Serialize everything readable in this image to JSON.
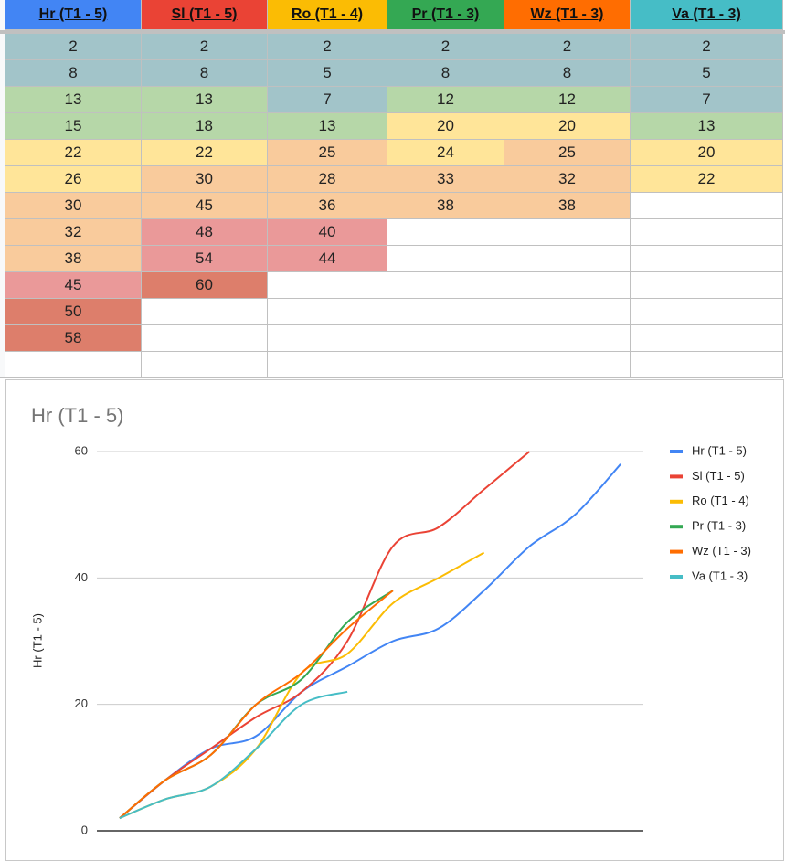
{
  "table": {
    "columns": [
      {
        "header": "Hr (T1 - 5)",
        "header_color": "#4285f4",
        "values": [
          2,
          8,
          13,
          15,
          22,
          26,
          30,
          32,
          38,
          45,
          50,
          58
        ],
        "colors": [
          "#a2c4c9",
          "#a2c4c9",
          "#b6d7a8",
          "#b6d7a8",
          "#ffe599",
          "#ffe599",
          "#f9cb9c",
          "#f9cb9c",
          "#f9cb9c",
          "#ea9999",
          "#dd7e6b",
          "#dd7e6b"
        ]
      },
      {
        "header": "Sl (T1 - 5)",
        "header_color": "#ea4335",
        "values": [
          2,
          8,
          13,
          18,
          22,
          30,
          45,
          48,
          54,
          60
        ],
        "colors": [
          "#a2c4c9",
          "#a2c4c9",
          "#b6d7a8",
          "#b6d7a8",
          "#ffe599",
          "#f9cb9c",
          "#f9cb9c",
          "#ea9999",
          "#ea9999",
          "#dd7e6b"
        ]
      },
      {
        "header": "Ro (T1 - 4)",
        "header_color": "#fbbc04",
        "values": [
          2,
          5,
          7,
          13,
          25,
          28,
          36,
          40,
          44
        ],
        "colors": [
          "#a2c4c9",
          "#a2c4c9",
          "#a2c4c9",
          "#b6d7a8",
          "#f9cb9c",
          "#f9cb9c",
          "#f9cb9c",
          "#ea9999",
          "#ea9999"
        ]
      },
      {
        "header": "Pr (T1 - 3)",
        "header_color": "#34a853",
        "values": [
          2,
          8,
          12,
          20,
          24,
          33,
          38
        ],
        "colors": [
          "#a2c4c9",
          "#a2c4c9",
          "#b6d7a8",
          "#ffe599",
          "#ffe599",
          "#f9cb9c",
          "#f9cb9c"
        ]
      },
      {
        "header": "Wz (T1 - 3)",
        "header_color": "#ff6d01",
        "values": [
          2,
          8,
          12,
          20,
          25,
          32,
          38
        ],
        "colors": [
          "#a2c4c9",
          "#a2c4c9",
          "#b6d7a8",
          "#ffe599",
          "#f9cb9c",
          "#f9cb9c",
          "#f9cb9c"
        ]
      },
      {
        "header": "Va (T1 - 3)",
        "header_color": "#46bdc6",
        "values": [
          2,
          5,
          7,
          13,
          20,
          22
        ],
        "colors": [
          "#a2c4c9",
          "#a2c4c9",
          "#a2c4c9",
          "#b6d7a8",
          "#ffe599",
          "#ffe599"
        ]
      }
    ]
  },
  "chart_data": {
    "type": "line",
    "title": "Hr (T1 - 5)",
    "y_label": "Hr (T1 - 5)",
    "categories": [
      null,
      null,
      null,
      null,
      null,
      null,
      null,
      null,
      null,
      null,
      null,
      null
    ],
    "series": [
      {
        "name": "Hr (T1 - 5)",
        "color": "#4285f4",
        "values": [
          2,
          8,
          13,
          15,
          22,
          26,
          30,
          32,
          38,
          45,
          50,
          58
        ]
      },
      {
        "name": "Sl (T1 - 5)",
        "color": "#ea4335",
        "values": [
          2,
          8,
          13,
          18,
          22,
          30,
          45,
          48,
          54,
          60,
          null,
          null
        ]
      },
      {
        "name": "Ro (T1 - 4)",
        "color": "#fbbc04",
        "values": [
          2,
          5,
          7,
          13,
          25,
          28,
          36,
          40,
          44,
          null,
          null,
          null
        ]
      },
      {
        "name": "Pr (T1 - 3)",
        "color": "#34a853",
        "values": [
          2,
          8,
          12,
          20,
          24,
          33,
          38,
          null,
          null,
          null,
          null,
          null
        ]
      },
      {
        "name": "Wz (T1 - 3)",
        "color": "#ff6d01",
        "values": [
          2,
          8,
          12,
          20,
          25,
          32,
          38,
          null,
          null,
          null,
          null,
          null
        ]
      },
      {
        "name": "Va (T1 - 3)",
        "color": "#46bdc6",
        "values": [
          2,
          5,
          7,
          13,
          20,
          22,
          null,
          null,
          null,
          null,
          null,
          null
        ]
      }
    ],
    "ylim": [
      0,
      60
    ],
    "yticks": [
      0,
      20,
      40,
      60
    ],
    "grid": true,
    "legend": "right"
  }
}
